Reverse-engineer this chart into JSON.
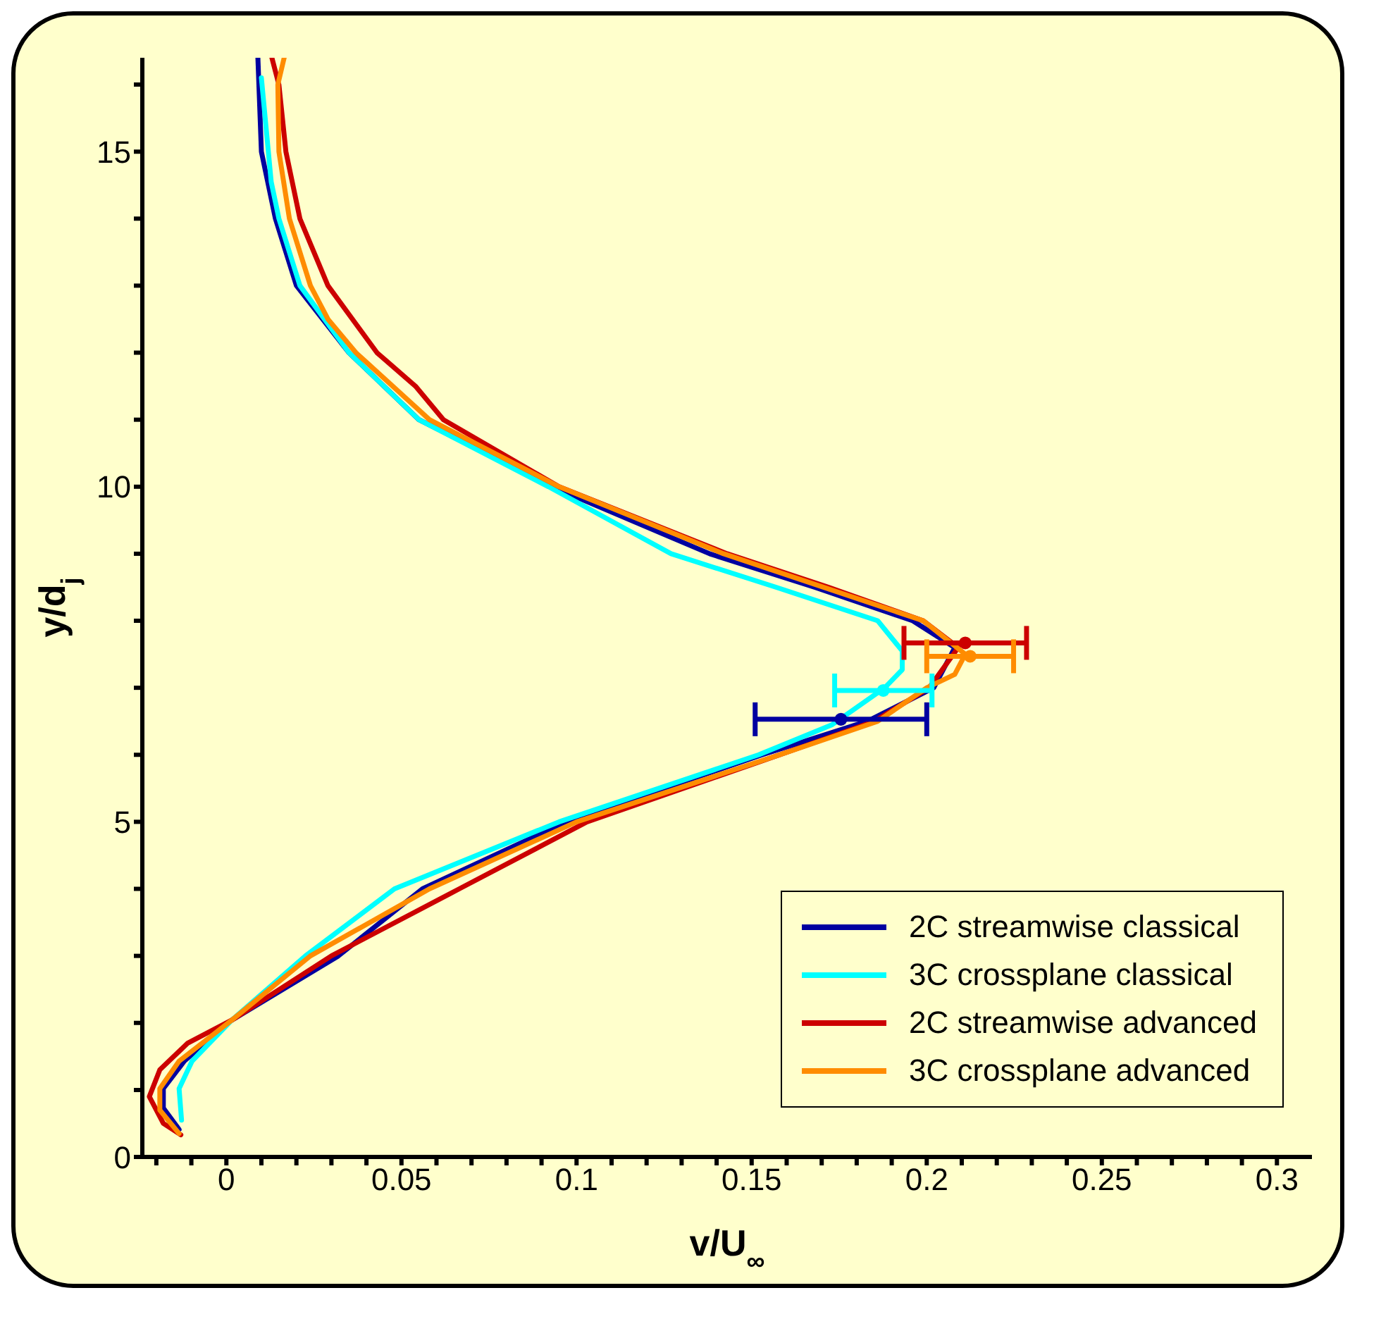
{
  "chart_data": {
    "type": "line",
    "xlabel": "v/U$_{∞}$",
    "ylabel": "y/d$_{j}$",
    "xlim": [
      -0.024,
      0.31
    ],
    "ylim": [
      0,
      16.4
    ],
    "xticks": [
      {
        "value": -0.02,
        "label": null
      },
      {
        "value": -0.01,
        "label": null
      },
      {
        "value": 0,
        "label": "0"
      },
      {
        "value": 0.01,
        "label": null
      },
      {
        "value": 0.02,
        "label": null
      },
      {
        "value": 0.03,
        "label": null
      },
      {
        "value": 0.04,
        "label": null
      },
      0.05,
      {
        "value": 0.06,
        "label": null
      },
      {
        "value": 0.07,
        "label": null
      },
      {
        "value": 0.08,
        "label": null
      },
      {
        "value": 0.09,
        "label": null
      },
      0.1,
      {
        "value": 0.11,
        "label": null
      },
      {
        "value": 0.12,
        "label": null
      },
      {
        "value": 0.13,
        "label": null
      },
      {
        "value": 0.14,
        "label": null
      },
      0.15,
      {
        "value": 0.16,
        "label": null
      },
      {
        "value": 0.17,
        "label": null
      },
      {
        "value": 0.18,
        "label": null
      },
      {
        "value": 0.19,
        "label": null
      },
      0.2,
      {
        "value": 0.21,
        "label": null
      },
      {
        "value": 0.22,
        "label": null
      },
      {
        "value": 0.23,
        "label": null
      },
      {
        "value": 0.24,
        "label": null
      },
      0.25,
      {
        "value": 0.26,
        "label": null
      },
      {
        "value": 0.27,
        "label": null
      },
      {
        "value": 0.28,
        "label": null
      },
      {
        "value": 0.29,
        "label": null
      },
      0.3
    ],
    "yticks": [
      0,
      {
        "value": 1,
        "label": null
      },
      {
        "value": 2,
        "label": null
      },
      {
        "value": 3,
        "label": null
      },
      {
        "value": 4,
        "label": null
      },
      5,
      {
        "value": 6,
        "label": null
      },
      {
        "value": 7,
        "label": null
      },
      {
        "value": 8,
        "label": null
      },
      {
        "value": 9,
        "label": null
      },
      10,
      {
        "value": 11,
        "label": null
      },
      {
        "value": 12,
        "label": null
      },
      {
        "value": 13,
        "label": null
      },
      {
        "value": 14,
        "label": null
      },
      15,
      {
        "value": 16,
        "label": null
      }
    ],
    "grid": false,
    "legend": "bottom right",
    "line_style": "solid",
    "series": [
      {
        "name": "2C streamwise classical",
        "marker": "none",
        "color": "#0000a0",
        "x": [
          0.009,
          0.01,
          0.014,
          0.02,
          0.035,
          0.055,
          0.093,
          0.138,
          0.168,
          0.196,
          0.208,
          0.202,
          0.183,
          0.153,
          0.097,
          0.056,
          0.032,
          0.0015,
          -0.012,
          -0.018,
          -0.018,
          -0.0135
        ],
        "values": [
          16.4,
          15,
          14,
          13,
          12,
          11,
          10,
          9,
          8.5,
          8,
          7.6,
          7,
          6.5,
          6,
          5,
          4,
          3,
          2.04,
          1.43,
          1.02,
          0.73,
          0.41
        ]
      },
      {
        "name": "3C crossplane classical",
        "marker": "none",
        "color": "#00ffff",
        "x": [
          0.01,
          0.0128,
          0.015,
          0.021,
          0.035,
          0.055,
          0.092,
          0.127,
          0.157,
          0.186,
          0.193,
          0.193,
          0.188,
          0.173,
          0.152,
          0.095,
          0.048,
          0.0226,
          0.0015,
          -0.0098,
          -0.0135,
          -0.0128
        ],
        "values": [
          16.1,
          14.55,
          14,
          13,
          12,
          11,
          10,
          9,
          8.5,
          8,
          7.55,
          7.27,
          7,
          6.45,
          6,
          5,
          4,
          3,
          2.04,
          1.43,
          1.02,
          0.55
        ]
      },
      {
        "name": "2C streamwise advanced",
        "marker": "none",
        "color": "#cc0000",
        "x": [
          0.013,
          0.015,
          0.017,
          0.021,
          0.029,
          0.043,
          0.054,
          0.062,
          0.095,
          0.143,
          0.172,
          0.199,
          0.209,
          0.2007,
          0.185,
          0.158,
          0.103,
          0.0665,
          0.03,
          0.0015,
          -0.011,
          -0.019,
          -0.022,
          -0.018,
          -0.013
        ],
        "values": [
          16.4,
          16.0,
          15,
          14,
          13,
          12,
          11.5,
          11,
          10,
          9,
          8.5,
          8,
          7.6,
          7,
          6.5,
          6,
          5,
          4,
          3,
          2.04,
          1.7,
          1.3,
          0.9,
          0.5,
          0.33
        ]
      },
      {
        "name": "3C crossplane advanced",
        "marker": "none",
        "color": "#ff8c00",
        "x": [
          0.0165,
          0.0147,
          0.015,
          0.018,
          0.024,
          0.029,
          0.037,
          0.058,
          0.095,
          0.142,
          0.199,
          0.211,
          0.208,
          0.2,
          0.186,
          0.158,
          0.1,
          0.058,
          0.024,
          0.0015,
          -0.0135,
          -0.019,
          -0.019,
          -0.0135
        ],
        "values": [
          16.4,
          16.0,
          15,
          14,
          13,
          12.5,
          12,
          11,
          10,
          9,
          8,
          7.5,
          7.2,
          7,
          6.5,
          6,
          5,
          4,
          3,
          2.04,
          1.43,
          1.02,
          0.7,
          0.35
        ]
      },
      {
        "type": "scatter",
        "marker": "circle",
        "color": "#cc0000",
        "x": [
          0.211
        ],
        "values": [
          7.67
        ],
        "xerrors": [
          0.0175
        ]
      },
      {
        "type": "scatter",
        "marker": "circle",
        "color": "#ff8c00",
        "x": [
          0.2124
        ],
        "values": [
          7.47
        ],
        "xerrors": [
          0.0124
        ]
      },
      {
        "type": "scatter",
        "marker": "circle",
        "color": "#00ffff",
        "x": [
          0.1876
        ],
        "values": [
          6.96
        ],
        "xerrors": [
          0.0139
        ]
      },
      {
        "type": "scatter",
        "marker": "circle",
        "color": "#0000a0",
        "x": [
          0.1755
        ],
        "values": [
          6.53
        ],
        "xerrors": [
          0.0245
        ]
      }
    ]
  }
}
